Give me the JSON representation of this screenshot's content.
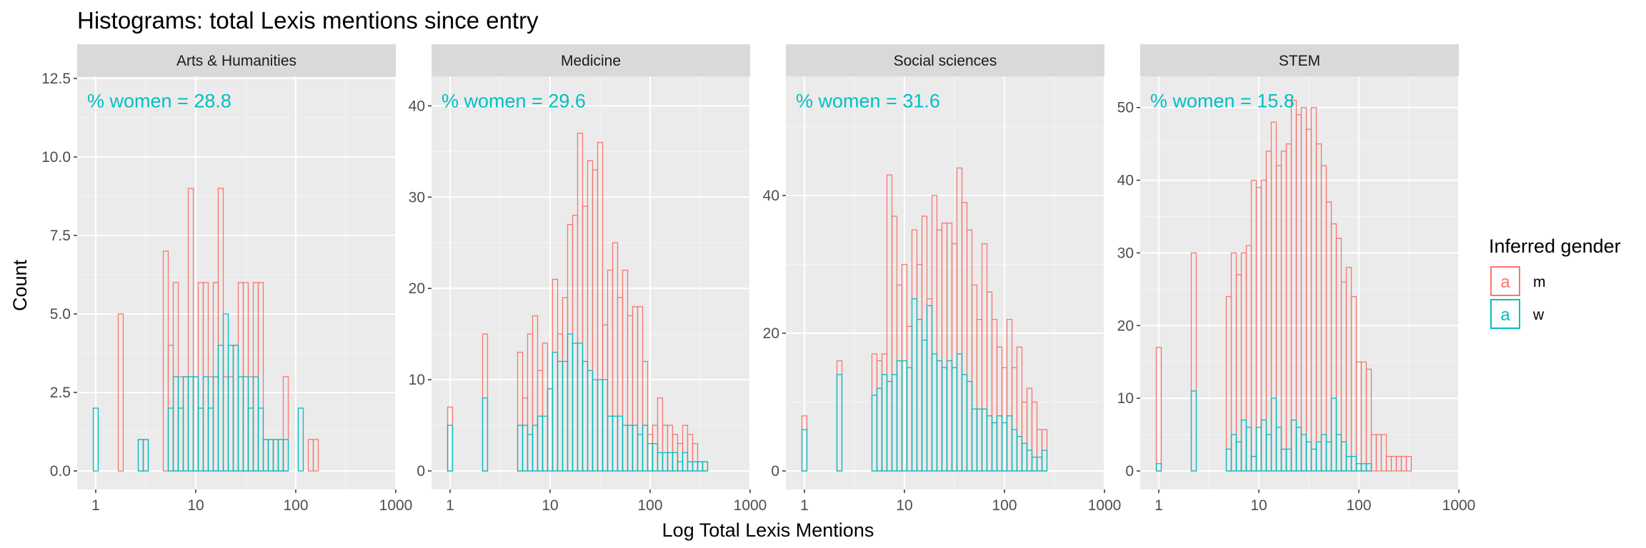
{
  "chart_data": {
    "type": "histogram",
    "title": "Histograms: total Lexis mentions since entry",
    "xlabel": "Log Total Lexis Mentions",
    "ylabel": "Count",
    "x_scale": "log10",
    "x_ticks": [
      "1",
      "10",
      "100",
      "1000"
    ],
    "legend": {
      "title": "Inferred gender",
      "position": "right",
      "key_glyph": "a",
      "entries": [
        {
          "label": "m",
          "color": "#F8766D"
        },
        {
          "label": "w",
          "color": "#00BFC4"
        }
      ]
    },
    "bins_per_decade": 20,
    "panels": [
      {
        "strip": "Arts & Humanities",
        "annotation": "% women = 28.8",
        "ylim": [
          0,
          12.5
        ],
        "y_ticks": [
          "0.0",
          "2.5",
          "5.0",
          "7.5",
          "10.0",
          "12.5"
        ],
        "xlim_log10": [
          0,
          2.85
        ],
        "series": [
          {
            "name": "m",
            "values": [
              0,
              0,
              0,
              0,
              0,
              5,
              0,
              0,
              0,
              1,
              1,
              0,
              0,
              0,
              7,
              4,
              6,
              3,
              3,
              9,
              3,
              6,
              6,
              3,
              6,
              9,
              3,
              3,
              4,
              6,
              6,
              3,
              6,
              6,
              1,
              1,
              1,
              1,
              3,
              0,
              0,
              0,
              0,
              1,
              1,
              0,
              0,
              0
            ]
          },
          {
            "name": "w",
            "values": [
              2,
              0,
              0,
              0,
              0,
              0,
              0,
              0,
              0,
              1,
              1,
              0,
              0,
              0,
              0,
              2,
              3,
              2,
              3,
              3,
              3,
              2,
              3,
              2,
              3,
              4,
              5,
              4,
              4,
              3,
              3,
              2,
              3,
              2,
              1,
              1,
              1,
              1,
              1,
              0,
              0,
              2,
              0,
              0,
              0,
              0,
              0,
              0
            ]
          }
        ]
      },
      {
        "strip": "Medicine",
        "annotation": "% women = 29.6",
        "ylim": [
          0,
          43
        ],
        "y_ticks": [
          "0",
          "10",
          "20",
          "30",
          "40"
        ],
        "xlim_log10": [
          0,
          2.85
        ],
        "series": [
          {
            "name": "m",
            "values": [
              7,
              0,
              0,
              0,
              0,
              0,
              0,
              15,
              0,
              0,
              0,
              0,
              0,
              0,
              13,
              8,
              15,
              17,
              11,
              14,
              9,
              21,
              15,
              19,
              27,
              28,
              37,
              29,
              34,
              33,
              36,
              16,
              22,
              25,
              19,
              22,
              17,
              18,
              18,
              12,
              4,
              5,
              8,
              5,
              5,
              4,
              3,
              5,
              4,
              3,
              1,
              1
            ]
          },
          {
            "name": "w",
            "values": [
              5,
              0,
              0,
              0,
              0,
              0,
              0,
              8,
              0,
              0,
              0,
              0,
              0,
              0,
              5,
              5,
              4,
              5,
              6,
              6,
              9,
              13,
              12,
              12,
              15,
              14,
              14,
              12,
              11,
              10,
              10,
              10,
              6,
              6,
              6,
              5,
              5,
              5,
              4,
              5,
              3,
              3,
              2,
              2,
              2,
              2,
              1,
              2,
              1,
              1,
              1,
              1
            ]
          }
        ]
      },
      {
        "strip": "Social sciences",
        "annotation": "% women = 31.6",
        "ylim": [
          0,
          57
        ],
        "y_ticks": [
          "0",
          "20",
          "40"
        ],
        "xlim_log10": [
          0,
          2.85
        ],
        "series": [
          {
            "name": "m",
            "values": [
              8,
              0,
              0,
              0,
              0,
              0,
              0,
              16,
              0,
              0,
              0,
              0,
              0,
              0,
              17,
              16,
              17,
              43,
              37,
              27,
              30,
              21,
              35,
              30,
              37,
              25,
              40,
              35,
              36,
              36,
              33,
              44,
              39,
              35,
              27,
              22,
              33,
              26,
              22,
              18,
              15,
              22,
              15,
              18,
              10,
              12,
              10,
              6,
              6
            ]
          },
          {
            "name": "w",
            "values": [
              6,
              0,
              0,
              0,
              0,
              0,
              0,
              14,
              0,
              0,
              0,
              0,
              0,
              0,
              11,
              12,
              14,
              13,
              14,
              16,
              16,
              15,
              25,
              22,
              19,
              24,
              17,
              16,
              15,
              16,
              15,
              17,
              14,
              13,
              9,
              9,
              9,
              8,
              7,
              8,
              7,
              8,
              6,
              5,
              4,
              3,
              2,
              2,
              3
            ]
          }
        ]
      },
      {
        "strip": "STEM",
        "annotation": "% women = 15.8",
        "ylim": [
          0,
          54
        ],
        "y_ticks": [
          "0",
          "10",
          "20",
          "30",
          "40",
          "50"
        ],
        "xlim_log10": [
          0,
          2.85
        ],
        "series": [
          {
            "name": "m",
            "values": [
              17,
              0,
              0,
              0,
              0,
              0,
              0,
              30,
              0,
              0,
              0,
              0,
              0,
              0,
              24,
              30,
              27,
              30,
              31,
              40,
              39,
              40,
              44,
              48,
              42,
              44,
              45,
              51,
              49,
              50,
              47,
              50,
              45,
              42,
              37,
              34,
              32,
              26,
              28,
              24,
              15,
              15,
              14,
              5,
              5,
              5,
              2,
              2,
              2,
              2,
              2
            ]
          },
          {
            "name": "w",
            "values": [
              1,
              0,
              0,
              0,
              0,
              0,
              0,
              11,
              0,
              0,
              0,
              0,
              0,
              0,
              3,
              5,
              4,
              7,
              6,
              2,
              6,
              7,
              5,
              10,
              6,
              3,
              3,
              7,
              6,
              5,
              4,
              3,
              4,
              5,
              4,
              10,
              5,
              4,
              2,
              2,
              1,
              1,
              1,
              0,
              0,
              0,
              0,
              0,
              0,
              0,
              0
            ]
          }
        ]
      }
    ]
  }
}
